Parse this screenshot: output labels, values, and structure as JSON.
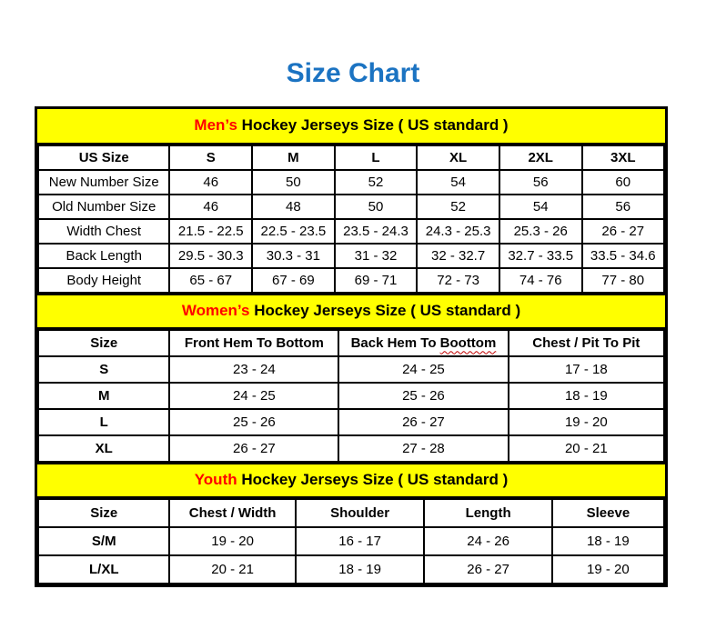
{
  "title": "Size Chart",
  "colors": {
    "title_blue": "#1b73c2",
    "banner_yellow": "#ffff00",
    "accent_red": "#ff0000",
    "border_black": "#000000"
  },
  "sections": {
    "mens": {
      "banner": {
        "highlight": "Men’s",
        "rest": " Hockey Jerseys Size ( US standard )"
      },
      "columns": [
        "US Size",
        "S",
        "M",
        "L",
        "XL",
        "2XL",
        "3XL"
      ],
      "rows": [
        {
          "label": "New Number Size",
          "values": [
            "46",
            "50",
            "52",
            "54",
            "56",
            "60"
          ]
        },
        {
          "label": "Old Number Size",
          "values": [
            "46",
            "48",
            "50",
            "52",
            "54",
            "56"
          ]
        },
        {
          "label": "Width Chest",
          "values": [
            "21.5 - 22.5",
            "22.5 - 23.5",
            "23.5 - 24.3",
            "24.3 - 25.3",
            "25.3 - 26",
            "26 - 27"
          ]
        },
        {
          "label": "Back Length",
          "values": [
            "29.5 - 30.3",
            "30.3 - 31",
            "31 - 32",
            "32 - 32.7",
            "32.7 - 33.5",
            "33.5 - 34.6"
          ]
        },
        {
          "label": "Body Height",
          "values": [
            "65 - 67",
            "67 - 69",
            "69 - 71",
            "72 - 73",
            "74 - 76",
            "77 - 80"
          ]
        }
      ]
    },
    "womens": {
      "banner": {
        "highlight": "Women’s",
        "rest": " Hockey Jerseys Size ( US standard )"
      },
      "columns": [
        "Size",
        "Front Hem To Bottom",
        "Back Hem To Boottom",
        "Chest / Pit To Pit"
      ],
      "misspelling": {
        "prefix": "Back Hem To ",
        "word": "Boottom"
      },
      "rows": [
        {
          "label": "S",
          "values": [
            "23 - 24",
            "24 - 25",
            "17 - 18"
          ]
        },
        {
          "label": "M",
          "values": [
            "24 - 25",
            "25 - 26",
            "18 - 19"
          ]
        },
        {
          "label": "L",
          "values": [
            "25 - 26",
            "26 - 27",
            "19 - 20"
          ]
        },
        {
          "label": "XL",
          "values": [
            "26 - 27",
            "27 - 28",
            "20 - 21"
          ]
        }
      ]
    },
    "youth": {
      "banner": {
        "highlight": "Youth",
        "rest": " Hockey Jerseys Size ( US standard )"
      },
      "columns": [
        "Size",
        "Chest / Width",
        "Shoulder",
        "Length",
        "Sleeve"
      ],
      "rows": [
        {
          "label": "S/M",
          "values": [
            "19 - 20",
            "16 - 17",
            "24 - 26",
            "18 - 19"
          ]
        },
        {
          "label": "L/XL",
          "values": [
            "20 - 21",
            "18 - 19",
            "26 - 27",
            "19 - 20"
          ]
        }
      ]
    }
  }
}
